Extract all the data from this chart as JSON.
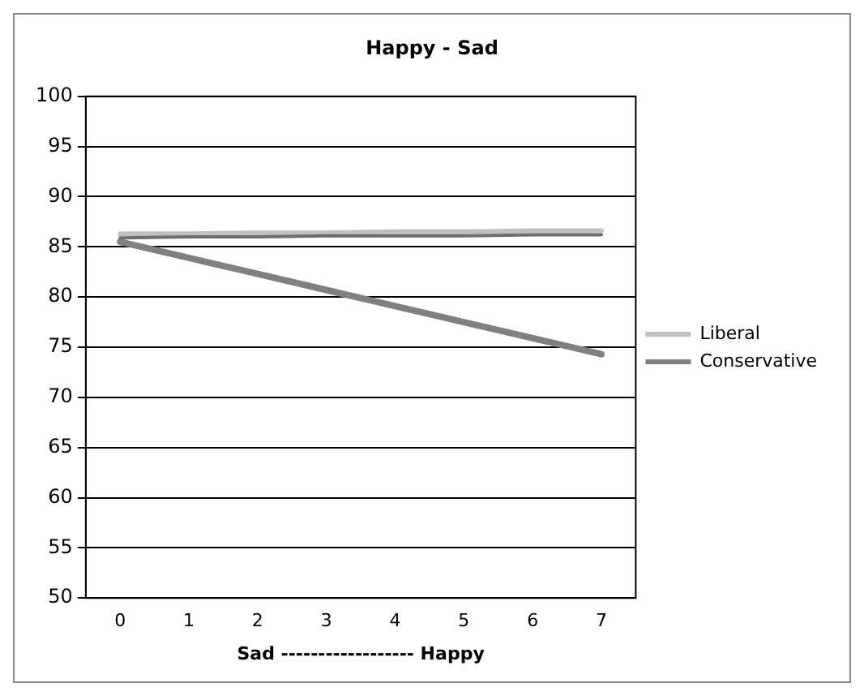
{
  "chart_data": {
    "type": "line",
    "title": "Happy - Sad",
    "xlabel": "Sad ------------------ Happy",
    "categories": [
      "0",
      "1",
      "2",
      "3",
      "4",
      "5",
      "6",
      "7"
    ],
    "series": [
      {
        "name": "Liberal",
        "color": "#c0c0c0",
        "values": [
          86.3,
          86.3,
          86.4,
          86.4,
          86.5,
          86.5,
          86.6,
          86.6
        ]
      },
      {
        "color": "#6e6e6e",
        "values": [
          85.9,
          86.0,
          86.0,
          86.1,
          86.1,
          86.1,
          86.2,
          86.2
        ]
      },
      {
        "name": "Conservative",
        "color": "#808080",
        "values": [
          85.5,
          83.9,
          82.3,
          80.7,
          79.1,
          77.5,
          75.9,
          74.3
        ]
      }
    ],
    "ylim": [
      50,
      100
    ],
    "yticks": [
      50,
      55,
      60,
      65,
      70,
      75,
      80,
      85,
      90,
      95,
      100
    ],
    "grid": "y",
    "legend": "right",
    "marker": "none",
    "line_style": "solid"
  }
}
